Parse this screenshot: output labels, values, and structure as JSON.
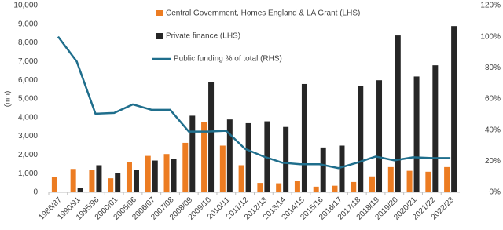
{
  "chart_data": {
    "type": "bar_line",
    "y_label": "(mn)",
    "categories": [
      "1986/87",
      "1990/91",
      "1995/96",
      "2000/01",
      "2005/06",
      "2006/07",
      "2007/08",
      "2008/09",
      "2009/10",
      "2010/11",
      "2011/12",
      "2012/13",
      "2013/14",
      "2014/15",
      "2015/16",
      "2016/17",
      "2017/18",
      "2018/19",
      "2019/20",
      "2020/21",
      "2021/22",
      "2022/23"
    ],
    "series": [
      {
        "name": "Central Government, Homes England & LA Grant (LHS)",
        "type": "bar",
        "color": "#ec7c22",
        "values": [
          830,
          1250,
          1200,
          750,
          1600,
          1950,
          2050,
          2650,
          3750,
          2500,
          1450,
          500,
          480,
          600,
          300,
          350,
          550,
          850,
          1350,
          1150,
          1100,
          1350
        ]
      },
      {
        "name": "Private finance (LHS)",
        "type": "bar",
        "color": "#262626",
        "values": [
          null,
          250,
          1450,
          1050,
          1200,
          1700,
          1800,
          4100,
          5900,
          3900,
          3700,
          3800,
          3500,
          5800,
          2400,
          2500,
          5700,
          6000,
          8400,
          6200,
          6800,
          8900
        ]
      },
      {
        "name": "Public funding % of total (RHS)",
        "type": "line",
        "axis": "y2",
        "color": "#1f6e8c",
        "values": [
          100,
          84,
          50.5,
          51,
          56.5,
          53,
          53,
          39,
          39,
          39.5,
          28,
          23,
          19,
          18,
          18,
          15.5,
          19,
          23,
          20.5,
          22.5,
          22,
          22
        ]
      }
    ],
    "ylim": [
      0,
      10000
    ],
    "yticks": [
      0,
      {
        "value": 1000,
        "label": "1,000"
      },
      {
        "value": 2000,
        "label": "2,000"
      },
      {
        "value": 3000,
        "label": "3,000"
      },
      {
        "value": 4000,
        "label": "4,000"
      },
      {
        "value": 5000,
        "label": "5,000"
      },
      {
        "value": 6000,
        "label": "6,000"
      },
      {
        "value": 7000,
        "label": "7,000"
      },
      {
        "value": 8000,
        "label": "8,000"
      },
      {
        "value": 9000,
        "label": "9,000"
      },
      {
        "value": 10000,
        "label": "10,000"
      }
    ],
    "y2lim": [
      0,
      120
    ],
    "y2ticks": [
      {
        "value": 0,
        "label": "0%"
      },
      {
        "value": 20,
        "label": "20%"
      },
      {
        "value": 40,
        "label": "40%"
      },
      {
        "value": 60,
        "label": "60%"
      },
      {
        "value": 80,
        "label": "80%"
      },
      {
        "value": 100,
        "label": "100%"
      },
      {
        "value": 120,
        "label": "120%"
      }
    ],
    "grid": false
  }
}
